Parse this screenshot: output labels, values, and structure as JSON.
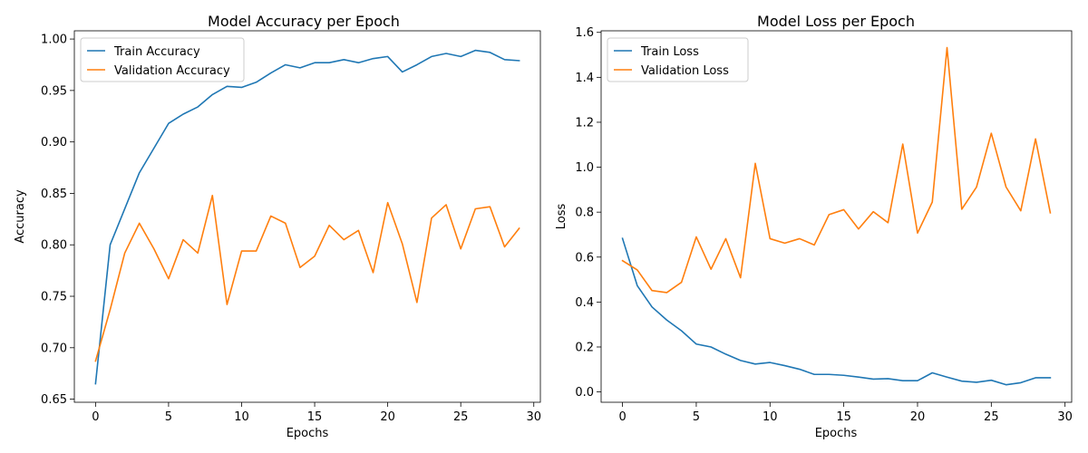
{
  "chart_data": [
    {
      "type": "line",
      "title": "Model Accuracy per Epoch",
      "xlabel": "Epochs",
      "ylabel": "Accuracy",
      "xlim": [
        -1.45,
        30.45
      ],
      "ylim": [
        0.647,
        1.008
      ],
      "xticks": [
        0,
        5,
        10,
        15,
        20,
        25,
        30
      ],
      "yticks": [
        0.65,
        0.7,
        0.75,
        0.8,
        0.85,
        0.9,
        0.95,
        1.0
      ],
      "ytick_labels": [
        "0.65",
        "0.70",
        "0.75",
        "0.80",
        "0.85",
        "0.90",
        "0.95",
        "1.00"
      ],
      "legend_position": "top-left",
      "series": [
        {
          "name": "Train Accuracy",
          "color": "#1f77b4",
          "x": [
            0,
            1,
            2,
            3,
            4,
            5,
            6,
            7,
            8,
            9,
            10,
            11,
            12,
            13,
            14,
            15,
            16,
            17,
            18,
            19,
            20,
            21,
            22,
            23,
            24,
            25,
            26,
            27,
            28,
            29
          ],
          "y": [
            0.665,
            0.8,
            0.835,
            0.87,
            0.894,
            0.918,
            0.927,
            0.934,
            0.946,
            0.954,
            0.953,
            0.958,
            0.967,
            0.975,
            0.972,
            0.977,
            0.977,
            0.98,
            0.977,
            0.981,
            0.983,
            0.968,
            0.975,
            0.983,
            0.986,
            0.983,
            0.989,
            0.987,
            0.98,
            0.979
          ]
        },
        {
          "name": "Validation Accuracy",
          "color": "#ff7f0e",
          "x": [
            0,
            1,
            2,
            3,
            4,
            5,
            6,
            7,
            8,
            9,
            10,
            11,
            12,
            13,
            14,
            15,
            16,
            17,
            18,
            19,
            20,
            21,
            22,
            23,
            24,
            25,
            26,
            27,
            28,
            29
          ],
          "y": [
            0.687,
            0.737,
            0.792,
            0.821,
            0.796,
            0.767,
            0.805,
            0.792,
            0.848,
            0.742,
            0.794,
            0.794,
            0.828,
            0.821,
            0.778,
            0.789,
            0.819,
            0.805,
            0.814,
            0.773,
            0.841,
            0.801,
            0.744,
            0.826,
            0.839,
            0.796,
            0.835,
            0.837,
            0.798,
            0.816
          ]
        }
      ]
    },
    {
      "type": "line",
      "title": "Model Loss per Epoch",
      "xlabel": "Epochs",
      "ylabel": "Loss",
      "xlim": [
        -1.45,
        30.45
      ],
      "ylim": [
        -0.046,
        1.607
      ],
      "xticks": [
        0,
        5,
        10,
        15,
        20,
        25,
        30
      ],
      "yticks": [
        0.0,
        0.2,
        0.4,
        0.6,
        0.8,
        1.0,
        1.2,
        1.4,
        1.6
      ],
      "ytick_labels": [
        "0.0",
        "0.2",
        "0.4",
        "0.6",
        "0.8",
        "1.0",
        "1.2",
        "1.4",
        "1.6"
      ],
      "legend_position": "top-left",
      "series": [
        {
          "name": "Train Loss",
          "color": "#1f77b4",
          "x": [
            0,
            1,
            2,
            3,
            4,
            5,
            6,
            7,
            8,
            9,
            10,
            11,
            12,
            13,
            14,
            15,
            16,
            17,
            18,
            19,
            20,
            21,
            22,
            23,
            24,
            25,
            26,
            27,
            28,
            29
          ],
          "y": [
            0.683,
            0.473,
            0.378,
            0.32,
            0.272,
            0.213,
            0.2,
            0.168,
            0.14,
            0.124,
            0.131,
            0.117,
            0.101,
            0.078,
            0.078,
            0.074,
            0.066,
            0.057,
            0.059,
            0.05,
            0.05,
            0.085,
            0.066,
            0.048,
            0.043,
            0.052,
            0.032,
            0.041,
            0.063,
            0.063
          ]
        },
        {
          "name": "Validation Loss",
          "color": "#ff7f0e",
          "x": [
            0,
            1,
            2,
            3,
            4,
            5,
            6,
            7,
            8,
            9,
            10,
            11,
            12,
            13,
            14,
            15,
            16,
            17,
            18,
            19,
            20,
            21,
            22,
            23,
            24,
            25,
            26,
            27,
            28,
            29
          ],
          "y": [
            0.584,
            0.543,
            0.451,
            0.442,
            0.488,
            0.69,
            0.546,
            0.682,
            0.508,
            1.017,
            0.682,
            0.662,
            0.682,
            0.654,
            0.789,
            0.811,
            0.725,
            0.802,
            0.753,
            1.103,
            0.707,
            0.845,
            1.532,
            0.813,
            0.912,
            1.151,
            0.912,
            0.806,
            1.126,
            0.797
          ]
        }
      ]
    }
  ]
}
